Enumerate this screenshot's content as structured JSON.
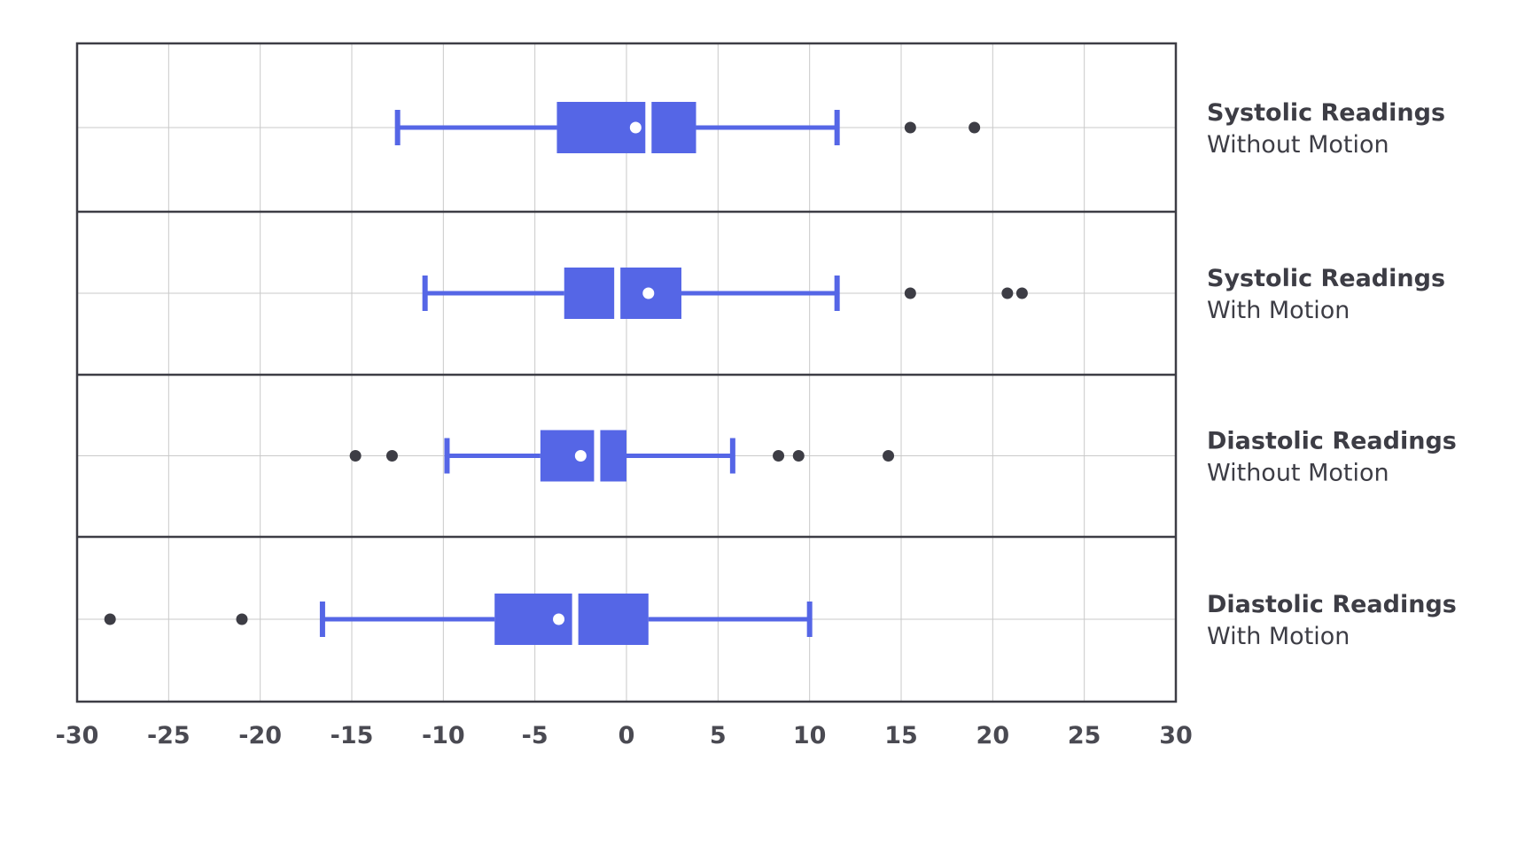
{
  "chart_data": {
    "type": "boxplot",
    "orientation": "horizontal",
    "xlim": [
      -30,
      30
    ],
    "x_ticks": [
      -30,
      -25,
      -20,
      -15,
      -10,
      -5,
      0,
      5,
      10,
      15,
      20,
      25,
      30
    ],
    "x_tick_labels": [
      "-30",
      "-25",
      "-20",
      "-15",
      "-10",
      "-5",
      "0",
      "5",
      "10",
      "15",
      "20",
      "25",
      "30"
    ],
    "grid": true,
    "colors": {
      "box": "#5566e6",
      "mean_marker": "#ffffff",
      "outlier": "#3d3d45",
      "grid": "#c9c9c9",
      "frame": "#3d3d45"
    },
    "series": [
      {
        "title": "Systolic Readings",
        "subtitle": "Without Motion",
        "whisker_low": -12.5,
        "q1": -3.8,
        "median": 1.2,
        "q3": 3.8,
        "whisker_high": 11.5,
        "mean": 0.5,
        "outliers": [
          15.5,
          19
        ]
      },
      {
        "title": "Systolic Readings",
        "subtitle": "With Motion",
        "whisker_low": -11,
        "q1": -3.4,
        "median": -0.5,
        "q3": 3,
        "whisker_high": 11.5,
        "mean": 1.2,
        "outliers": [
          15.5,
          20.8,
          21.6
        ]
      },
      {
        "title": "Diastolic Readings",
        "subtitle": "Without Motion",
        "whisker_low": -9.8,
        "q1": -4.7,
        "median": -1.6,
        "q3": 0,
        "whisker_high": 5.8,
        "mean": -2.5,
        "outliers": [
          -14.8,
          -12.8,
          8.3,
          9.4,
          14.3
        ]
      },
      {
        "title": "Diastolic Readings",
        "subtitle": "With Motion",
        "whisker_low": -16.6,
        "q1": -7.2,
        "median": -2.8,
        "q3": 1.2,
        "whisker_high": 10,
        "mean": -3.7,
        "outliers": [
          -28.2,
          -21
        ]
      }
    ]
  }
}
